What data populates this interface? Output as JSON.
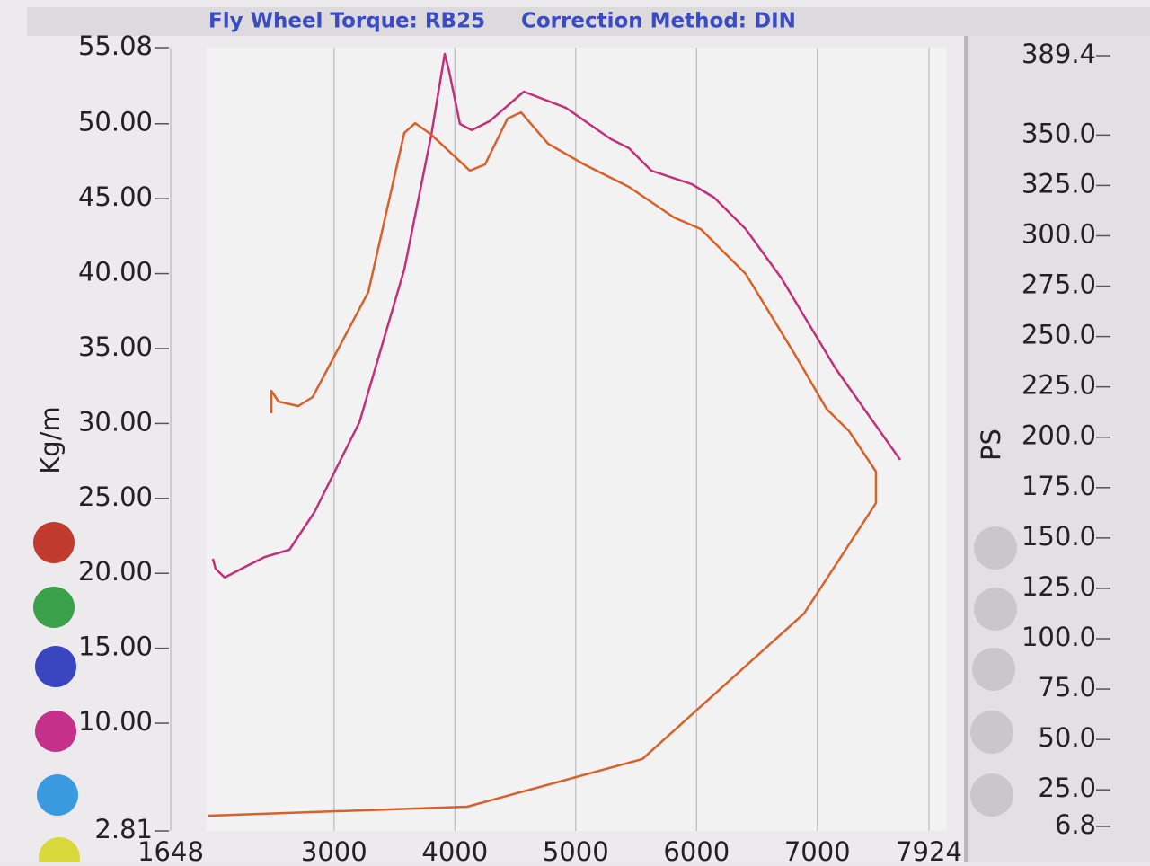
{
  "chart_data": {
    "type": "line",
    "title": "Fly Wheel Torque: RB25",
    "subtitle": "Correction Method: DIN",
    "y_label": "Kg/m",
    "y2_label": "PS",
    "xlim": [
      1648,
      7924
    ],
    "xticks": [
      1648,
      3000,
      4000,
      5000,
      6000,
      7000,
      7924
    ],
    "ylim": [
      2.81,
      55.08
    ],
    "yticks": [
      2.81,
      {
        "value": 10,
        "label": "10.00"
      },
      {
        "value": 15,
        "label": "15.00"
      },
      {
        "value": 20,
        "label": "20.00"
      },
      {
        "value": 25,
        "label": "25.00"
      },
      {
        "value": 30,
        "label": "30.00"
      },
      {
        "value": 35,
        "label": "35.00"
      },
      {
        "value": 40,
        "label": "40.00"
      },
      {
        "value": 45,
        "label": "45.00"
      },
      {
        "value": 50,
        "label": "50.00"
      },
      55.08
    ],
    "y2lim": [
      6.8,
      389.4
    ],
    "y2ticks": [
      6.8,
      {
        "value": 25,
        "label": "25.0"
      },
      {
        "value": 50,
        "label": "50.0"
      },
      {
        "value": 75,
        "label": "75.0"
      },
      {
        "value": 100,
        "label": "100.0"
      },
      {
        "value": 125,
        "label": "125.0"
      },
      {
        "value": 150,
        "label": "150.0"
      },
      {
        "value": 175,
        "label": "175.0"
      },
      {
        "value": 200,
        "label": "200.0"
      },
      {
        "value": 225,
        "label": "225.0"
      },
      {
        "value": 250,
        "label": "250.0"
      },
      {
        "value": 275,
        "label": "275.0"
      },
      {
        "value": 300,
        "label": "300.0"
      },
      {
        "value": 325,
        "label": "325.0"
      },
      {
        "value": 350,
        "label": "350.0"
      },
      389.4
    ],
    "grid": "x",
    "series": [
      {
        "color": "#c2307a",
        "x": [
          1997,
          2020,
          2094,
          2280,
          2429,
          2630,
          2838,
          3210,
          3581,
          3805,
          3916,
          3953,
          4042,
          4139,
          4288,
          4570,
          4920,
          5292,
          5440,
          5626,
          5961,
          6147,
          6407,
          6704,
          7150,
          7686
        ],
        "values": [
          20.97,
          20.31,
          19.72,
          20.5,
          21.1,
          21.57,
          24.09,
          30.09,
          40.28,
          49.27,
          54.66,
          53.46,
          49.99,
          49.57,
          50.17,
          52.14,
          51.06,
          48.97,
          48.37,
          46.87,
          45.97,
          45.07,
          42.97,
          39.68,
          33.68,
          27.57
        ]
      },
      {
        "color": "#d9602a",
        "x": [
          2481,
          2481,
          2540,
          2704,
          2823,
          3284,
          3581,
          3671,
          3805,
          4124,
          4250,
          4436,
          4548,
          4771,
          5069,
          5440,
          5812,
          6035,
          6407,
          6816,
          7076,
          7262,
          7485,
          7485,
          6890,
          5552,
          4102,
          1960
        ],
        "values": [
          30.68,
          32.18,
          31.46,
          31.16,
          31.76,
          38.78,
          49.39,
          50.04,
          49.27,
          46.87,
          47.29,
          50.35,
          50.76,
          48.67,
          47.29,
          45.79,
          43.75,
          42.97,
          39.98,
          34.58,
          30.98,
          29.49,
          26.79,
          24.69,
          17.32,
          7.61,
          4.43,
          3.83
        ]
      }
    ]
  }
}
